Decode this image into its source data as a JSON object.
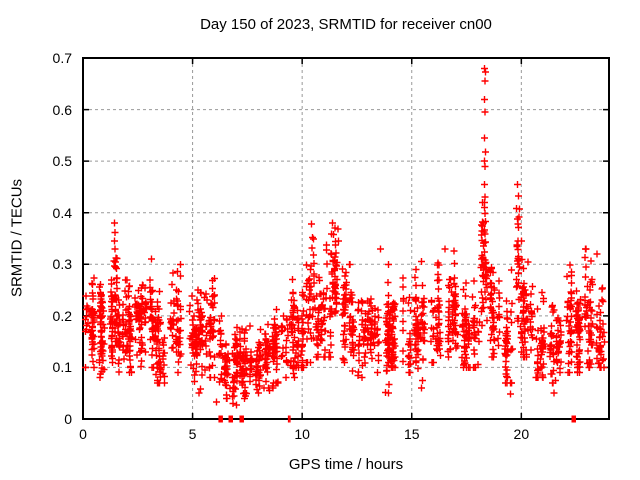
{
  "chart_data": {
    "type": "scatter",
    "title": "Day 150 of 2023, SRMTID for receiver cn00",
    "xlabel": "GPS time / hours",
    "ylabel": "SRMTID / TECUs",
    "xlim": [
      0,
      24
    ],
    "ylim": [
      0,
      0.7
    ],
    "xticks": [
      0,
      5,
      10,
      15,
      20
    ],
    "xtick_labels": [
      "0",
      "5",
      "10",
      "15",
      "20"
    ],
    "yticks": [
      0,
      0.1,
      0.2,
      0.3,
      0.4,
      0.5,
      0.6,
      0.7
    ],
    "ytick_labels": [
      "0",
      "0.1",
      "0.2",
      "0.3",
      "0.4",
      "0.5",
      "0.6",
      "0.7"
    ],
    "grid": true,
    "legend": "none",
    "marker": "plus",
    "marker_color": "#ff0000",
    "grid_color": "#999999",
    "axis_color": "#000000",
    "background_color": "#ffffff",
    "clusters_format": [
      "x_start_h",
      "x_end_h",
      "n_points",
      "y_mean",
      "y_sd",
      "y_min",
      "y_max"
    ],
    "clusters": [
      [
        0.0,
        0.5,
        55,
        0.19,
        0.04,
        0.1,
        0.28
      ],
      [
        0.5,
        1.0,
        55,
        0.17,
        0.038,
        0.08,
        0.27
      ],
      [
        1.0,
        1.35,
        35,
        0.19,
        0.045,
        0.11,
        0.3
      ],
      [
        1.35,
        1.55,
        30,
        0.26,
        0.055,
        0.15,
        0.38
      ],
      [
        1.55,
        2.0,
        45,
        0.17,
        0.04,
        0.09,
        0.27
      ],
      [
        2.0,
        2.5,
        50,
        0.17,
        0.038,
        0.09,
        0.27
      ],
      [
        2.5,
        3.0,
        50,
        0.17,
        0.042,
        0.08,
        0.29
      ],
      [
        3.0,
        3.3,
        35,
        0.2,
        0.05,
        0.1,
        0.31
      ],
      [
        3.3,
        4.0,
        55,
        0.15,
        0.04,
        0.07,
        0.26
      ],
      [
        4.0,
        4.6,
        50,
        0.17,
        0.045,
        0.09,
        0.3
      ],
      [
        4.6,
        5.2,
        50,
        0.14,
        0.035,
        0.05,
        0.24
      ],
      [
        5.2,
        5.7,
        45,
        0.16,
        0.045,
        0.05,
        0.28
      ],
      [
        5.7,
        6.1,
        40,
        0.19,
        0.05,
        0.08,
        0.31
      ],
      [
        6.1,
        6.6,
        45,
        0.12,
        0.035,
        0.04,
        0.2
      ],
      [
        6.6,
        7.1,
        45,
        0.1,
        0.03,
        0.03,
        0.18
      ],
      [
        7.1,
        7.6,
        45,
        0.11,
        0.035,
        0.04,
        0.22
      ],
      [
        7.6,
        8.1,
        45,
        0.1,
        0.03,
        0.05,
        0.18
      ],
      [
        8.1,
        8.7,
        45,
        0.12,
        0.03,
        0.06,
        0.2
      ],
      [
        8.7,
        9.2,
        45,
        0.14,
        0.035,
        0.07,
        0.23
      ],
      [
        9.2,
        9.7,
        45,
        0.16,
        0.045,
        0.08,
        0.28
      ],
      [
        9.7,
        10.2,
        45,
        0.18,
        0.045,
        0.1,
        0.31
      ],
      [
        10.2,
        10.6,
        40,
        0.21,
        0.055,
        0.11,
        0.38
      ],
      [
        10.6,
        11.1,
        50,
        0.2,
        0.045,
        0.12,
        0.32
      ],
      [
        11.1,
        11.8,
        60,
        0.23,
        0.055,
        0.12,
        0.38
      ],
      [
        11.8,
        12.3,
        50,
        0.2,
        0.045,
        0.11,
        0.3
      ],
      [
        12.3,
        12.9,
        50,
        0.16,
        0.038,
        0.08,
        0.25
      ],
      [
        12.9,
        13.5,
        50,
        0.16,
        0.035,
        0.09,
        0.26
      ],
      [
        13.5,
        14.0,
        45,
        0.17,
        0.042,
        0.05,
        0.33
      ],
      [
        14.0,
        14.6,
        50,
        0.16,
        0.035,
        0.1,
        0.26
      ],
      [
        14.6,
        15.2,
        50,
        0.16,
        0.038,
        0.09,
        0.28
      ],
      [
        15.2,
        15.8,
        50,
        0.17,
        0.045,
        0.05,
        0.32
      ],
      [
        15.8,
        16.4,
        50,
        0.19,
        0.045,
        0.11,
        0.32
      ],
      [
        16.4,
        17.0,
        50,
        0.2,
        0.048,
        0.12,
        0.33
      ],
      [
        17.0,
        17.6,
        45,
        0.17,
        0.042,
        0.1,
        0.29
      ],
      [
        17.6,
        18.1,
        40,
        0.18,
        0.05,
        0.1,
        0.33
      ],
      [
        18.1,
        18.6,
        55,
        0.28,
        0.065,
        0.15,
        0.42
      ],
      [
        18.6,
        19.2,
        50,
        0.21,
        0.05,
        0.12,
        0.34
      ],
      [
        19.2,
        19.7,
        40,
        0.17,
        0.045,
        0.07,
        0.29
      ],
      [
        19.7,
        20.1,
        40,
        0.26,
        0.065,
        0.13,
        0.43
      ],
      [
        20.1,
        20.6,
        50,
        0.2,
        0.048,
        0.12,
        0.33
      ],
      [
        20.6,
        21.1,
        45,
        0.15,
        0.042,
        0.08,
        0.26
      ],
      [
        21.1,
        21.7,
        45,
        0.13,
        0.035,
        0.07,
        0.22
      ],
      [
        21.7,
        22.3,
        50,
        0.17,
        0.042,
        0.09,
        0.3
      ],
      [
        22.3,
        22.9,
        50,
        0.16,
        0.04,
        0.09,
        0.28
      ],
      [
        22.9,
        23.4,
        50,
        0.19,
        0.05,
        0.1,
        0.33
      ],
      [
        23.4,
        23.9,
        40,
        0.17,
        0.042,
        0.1,
        0.3
      ]
    ],
    "outlier_points": [
      [
        18.32,
        0.68
      ],
      [
        18.36,
        0.673
      ],
      [
        18.34,
        0.655
      ],
      [
        18.33,
        0.62
      ],
      [
        18.35,
        0.595
      ],
      [
        18.33,
        0.545
      ],
      [
        18.36,
        0.518
      ],
      [
        18.32,
        0.5
      ],
      [
        18.35,
        0.49
      ],
      [
        18.31,
        0.455
      ],
      [
        18.34,
        0.43
      ],
      [
        18.33,
        0.41
      ],
      [
        1.43,
        0.38
      ],
      [
        1.46,
        0.362
      ],
      [
        1.44,
        0.345
      ],
      [
        1.47,
        0.33
      ],
      [
        10.43,
        0.378
      ],
      [
        10.47,
        0.352
      ],
      [
        10.45,
        0.332
      ],
      [
        11.38,
        0.38
      ],
      [
        11.42,
        0.358
      ],
      [
        11.63,
        0.368
      ],
      [
        11.66,
        0.345
      ],
      [
        13.58,
        0.33
      ],
      [
        13.95,
        0.3
      ],
      [
        16.52,
        0.33
      ],
      [
        19.82,
        0.455
      ],
      [
        19.86,
        0.432
      ],
      [
        19.79,
        0.408
      ],
      [
        22.95,
        0.33
      ],
      [
        23.45,
        0.32
      ],
      [
        3.4,
        0.075
      ],
      [
        5.3,
        0.05
      ],
      [
        6.1,
        0.033
      ],
      [
        6.9,
        0.045
      ],
      [
        7.0,
        0.027
      ],
      [
        7.4,
        0.05
      ],
      [
        8.5,
        0.055
      ],
      [
        13.8,
        0.051
      ],
      [
        15.45,
        0.06
      ],
      [
        15.5,
        0.075
      ],
      [
        19.5,
        0.048
      ],
      [
        19.55,
        0.07
      ],
      [
        21.5,
        0.05
      ],
      [
        21.55,
        0.075
      ]
    ],
    "zero_points_format": [
      "x_h",
      "overlap_count"
    ],
    "zero_points": [
      [
        6.27,
        3
      ],
      [
        6.73,
        3
      ],
      [
        7.23,
        3
      ],
      [
        9.38,
        1
      ],
      [
        9.44,
        1
      ],
      [
        22.38,
        3
      ]
    ]
  }
}
